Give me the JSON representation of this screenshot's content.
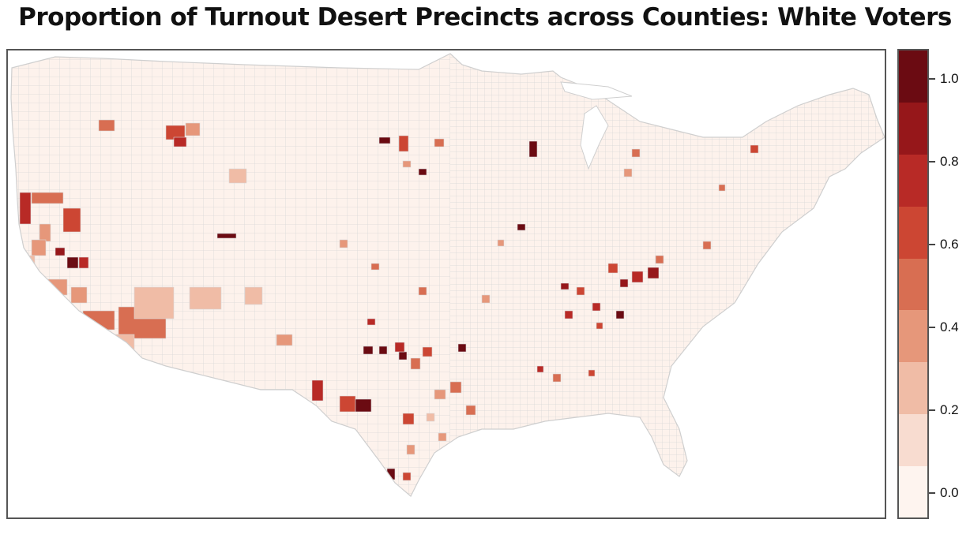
{
  "title": "Proportion of Turnout Desert Precincts across Counties: White Voters",
  "map": {
    "region": "Contiguous United States, county level",
    "county_border_color": "#d9d9d9",
    "default_fill": "#fdf0ea"
  },
  "legend": {
    "colors": [
      "#fef4ef",
      "#f8dcd0",
      "#f0bca6",
      "#e6977a",
      "#d86e52",
      "#cc4633",
      "#b82a26",
      "#96171a",
      "#6b0b12"
    ],
    "ticks": [
      {
        "label": "1.0",
        "value": 1.0
      },
      {
        "label": "0.8",
        "value": 0.8
      },
      {
        "label": "0.6",
        "value": 0.6
      },
      {
        "label": "0.4",
        "value": 0.4
      },
      {
        "label": "0.2",
        "value": 0.2
      },
      {
        "label": "0.0",
        "value": 0.0
      }
    ]
  }
}
